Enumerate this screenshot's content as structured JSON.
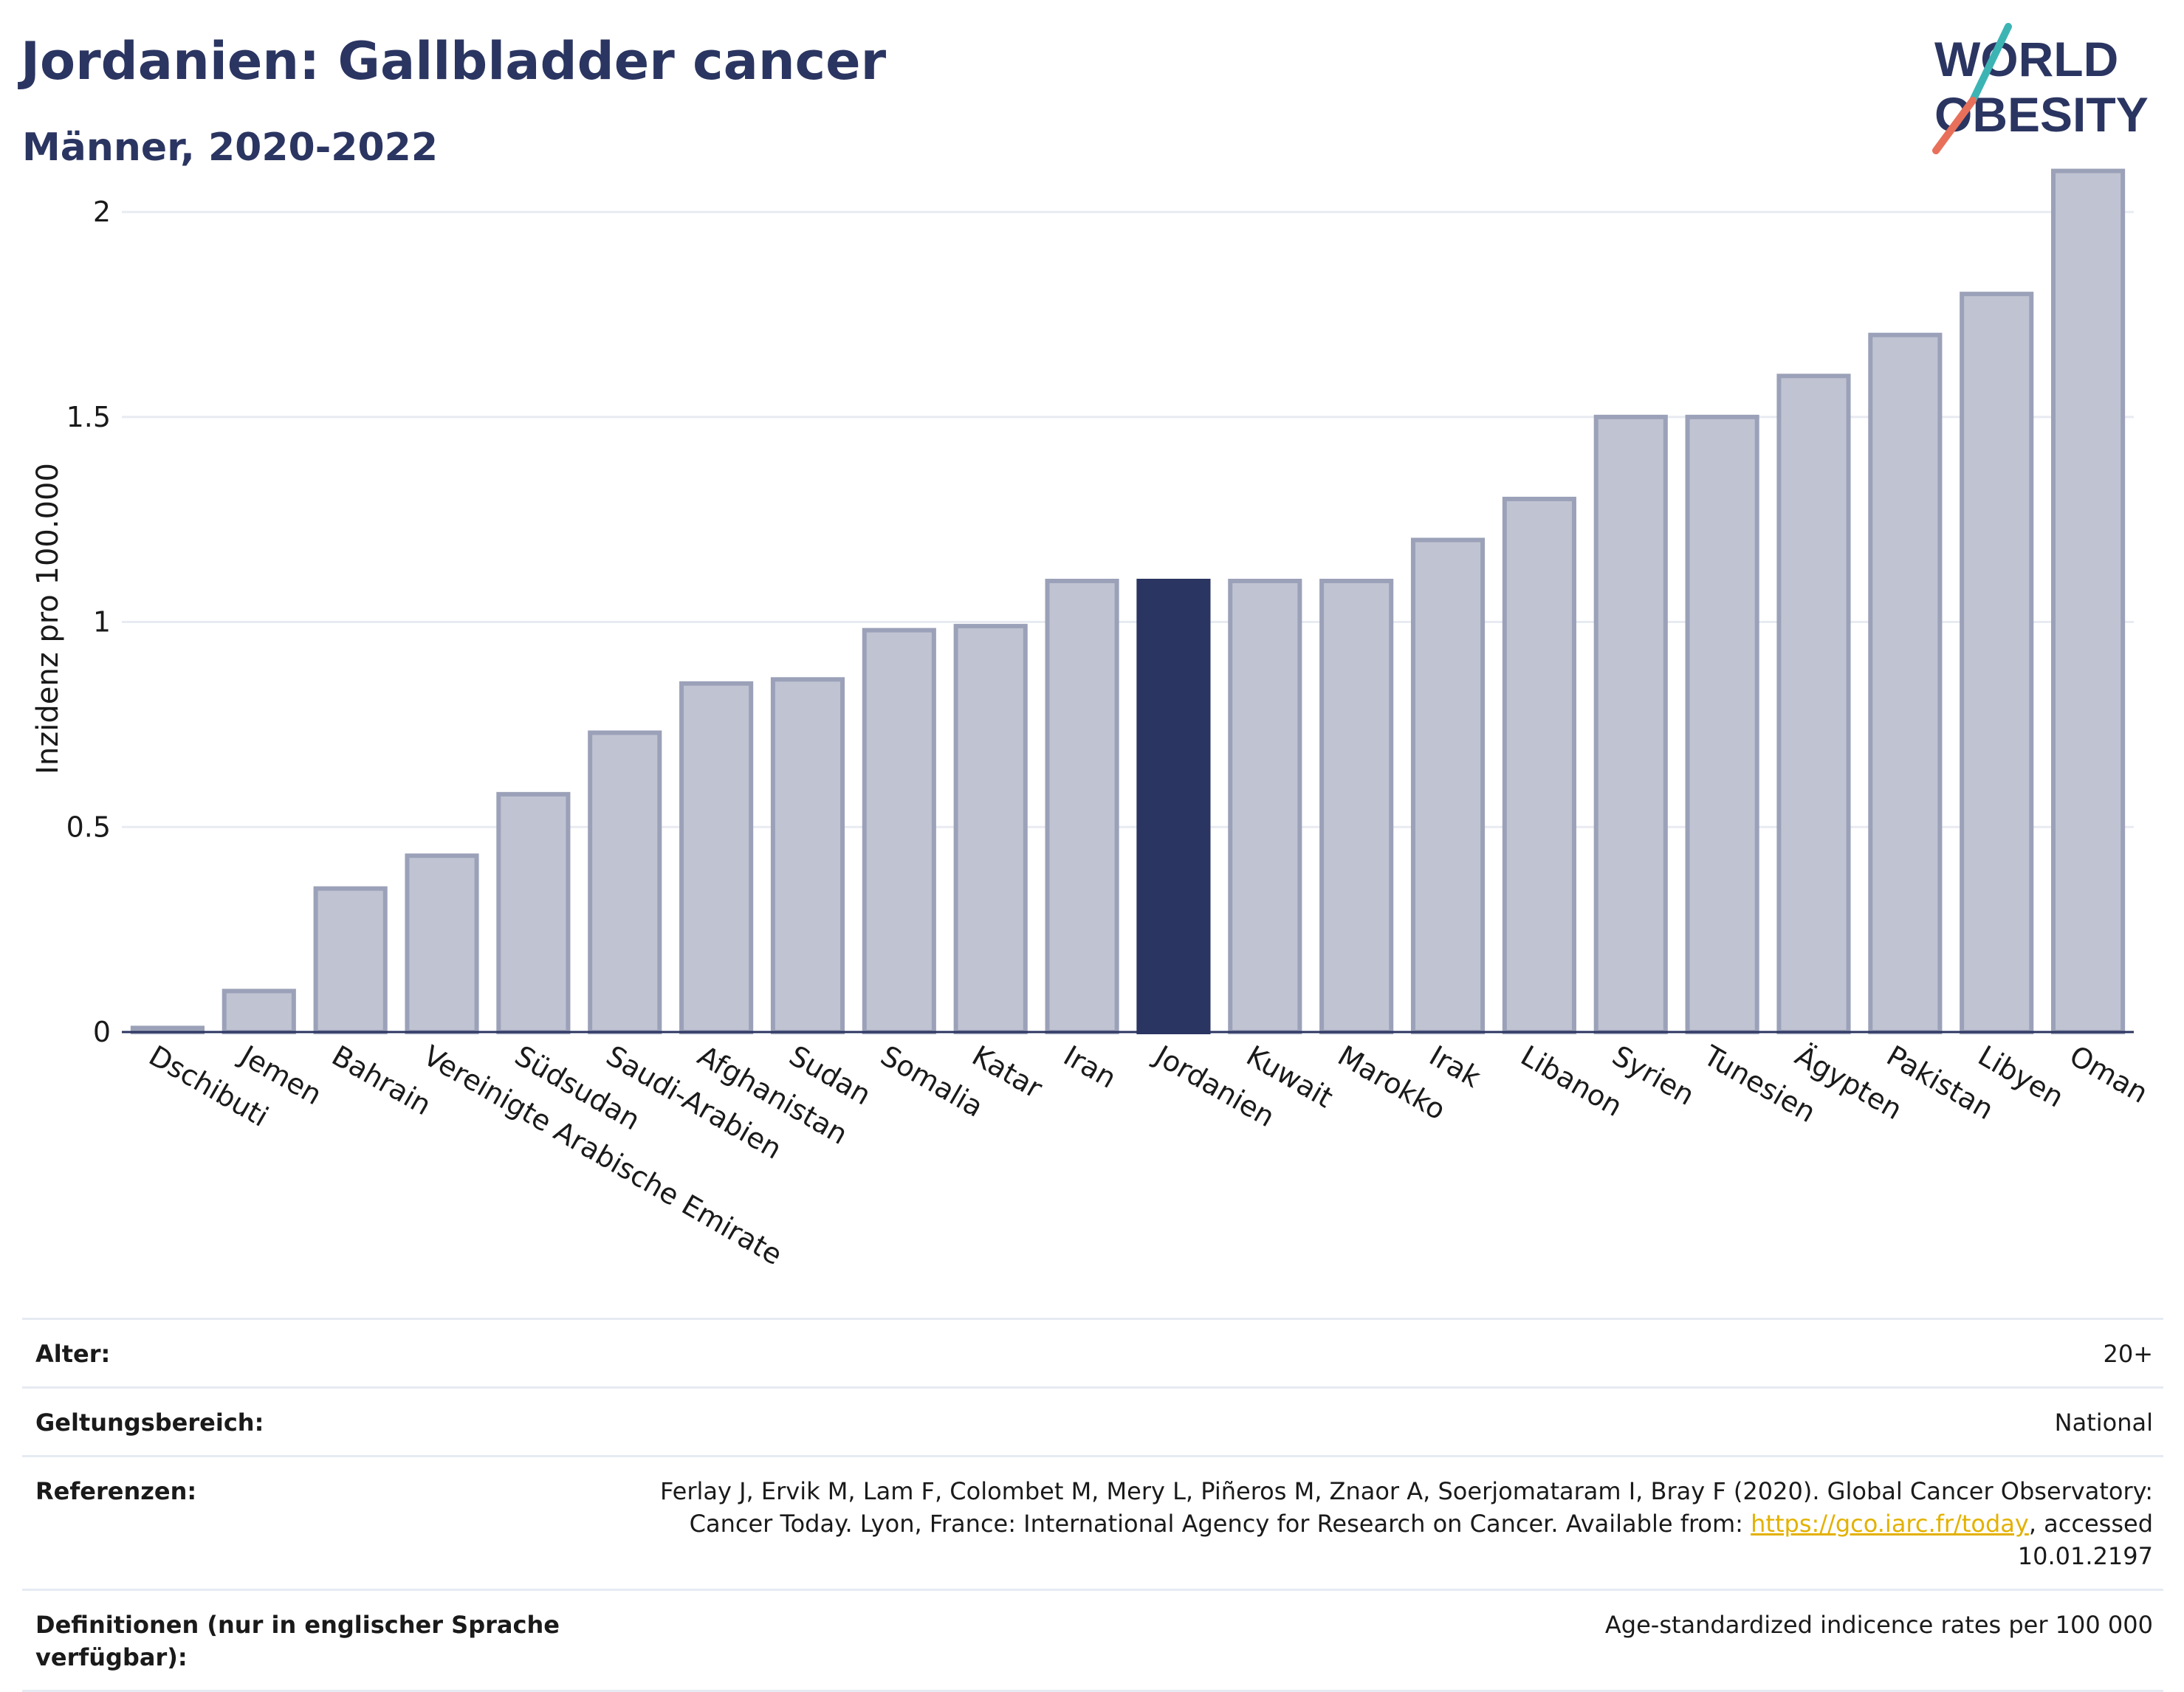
{
  "header": {
    "title": "Jordanien: Gallbladder cancer",
    "subtitle": "Männer, 2020-2022"
  },
  "logo": {
    "line1": "WORLD",
    "line2": "OBESITY"
  },
  "chart_data": {
    "type": "bar",
    "ylabel": "Inzidenz pro 100.000",
    "xlabel": "",
    "ylim": [
      0,
      2.2
    ],
    "yticks": [
      0,
      0.5,
      1,
      1.5,
      2
    ],
    "ytick_labels": [
      "0",
      "0.5",
      "1",
      "1.5",
      "2"
    ],
    "grid": true,
    "categories": [
      "Dschibuti",
      "Jemen",
      "Bahrain",
      "Vereinigte Arabische Emirate",
      "Südsudan",
      "Saudi-Arabien",
      "Afghanistan",
      "Sudan",
      "Somalia",
      "Katar",
      "Iran",
      "Jordanien",
      "Kuwait",
      "Marokko",
      "Irak",
      "Libanon",
      "Syrien",
      "Tunesien",
      "Ägypten",
      "Pakistan",
      "Libyen",
      "Oman"
    ],
    "values": [
      0.01,
      0.1,
      0.35,
      0.43,
      0.58,
      0.73,
      0.85,
      0.86,
      0.98,
      0.99,
      1.1,
      1.1,
      1.1,
      1.1,
      1.2,
      1.3,
      1.5,
      1.5,
      1.6,
      1.7,
      1.8,
      2.1
    ],
    "highlight": "Jordanien",
    "colors": {
      "bar": "#c0c3d1",
      "bar_border": "#9ba1b8",
      "highlight": "#2b3561",
      "grid": "#e8ebf1",
      "axis": "#2b3561"
    }
  },
  "info": {
    "rows": [
      {
        "label": "Alter:",
        "value": "20+"
      },
      {
        "label": "Geltungsbereich:",
        "value": "National"
      },
      {
        "label": "Referenzen:",
        "value_pre": "Ferlay J, Ervik M, Lam F, Colombet M, Mery L, Piñeros M, Znaor A, Soerjomataram I, Bray F (2020). Global Cancer Observatory: Cancer Today. Lyon, France: International Agency for Research on Cancer. Available from: ",
        "link": "https://gco.iarc.fr/today",
        "value_post": ", accessed 10.01.2197"
      },
      {
        "label": "Definitionen (nur in englischer Sprache verfügbar):",
        "value": "Age-standardized indicence rates per 100 000"
      }
    ]
  }
}
